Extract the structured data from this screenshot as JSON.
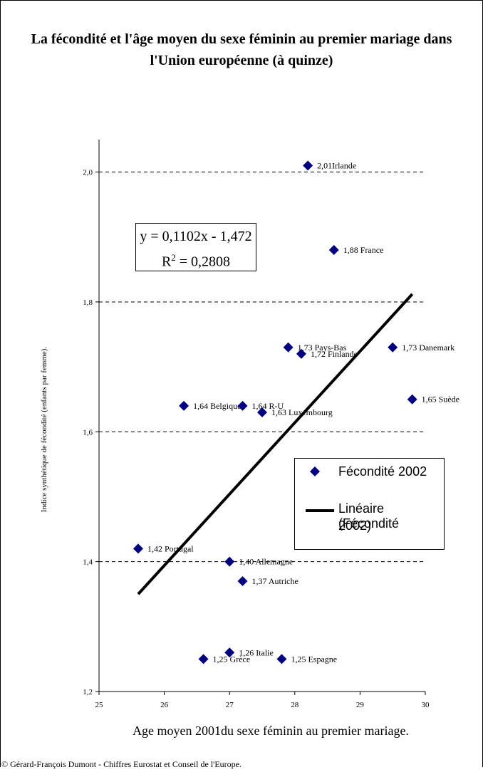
{
  "chart_data": {
    "type": "scatter",
    "title": "La fécondité et l'âge moyen du sexe féminin au premier mariage dans l'Union européenne (à quinze)",
    "xlabel": "Age moyen 2001du sexe féminin au premier mariage.",
    "ylabel": "Indice synthétique de fécondité (enfants par femme).",
    "xlim": [
      25,
      30
    ],
    "ylim": [
      1.2,
      2.05
    ],
    "x_ticks": [
      "25",
      "26",
      "27",
      "28",
      "29",
      "30"
    ],
    "y_ticks": [
      "1,2",
      "1,4",
      "1,6",
      "1,8",
      "2,0"
    ],
    "grid": "horizontal dashed",
    "legend_position": "bottom-right",
    "series": [
      {
        "name": "Fécondité 2002",
        "color": "#00007f",
        "marker": "diamond",
        "points": [
          {
            "x": 28.2,
            "y": 2.01,
            "label": "2,01Irlande"
          },
          {
            "x": 28.6,
            "y": 1.88,
            "label": "1,88 France"
          },
          {
            "x": 27.9,
            "y": 1.73,
            "label": "1,73 Pays-Bas"
          },
          {
            "x": 28.1,
            "y": 1.72,
            "label": "1,72 Finlande"
          },
          {
            "x": 29.5,
            "y": 1.73,
            "label": "1,73 Danemark"
          },
          {
            "x": 29.8,
            "y": 1.65,
            "label": "1,65 Suède"
          },
          {
            "x": 26.3,
            "y": 1.64,
            "label": "1,64 Belgique"
          },
          {
            "x": 27.2,
            "y": 1.64,
            "label": "1,64 R-U"
          },
          {
            "x": 27.5,
            "y": 1.63,
            "label": "1,63 Luxembourg"
          },
          {
            "x": 25.6,
            "y": 1.42,
            "label": "1,42 Portugal"
          },
          {
            "x": 27.0,
            "y": 1.4,
            "label": "1,40 Allemagne"
          },
          {
            "x": 27.2,
            "y": 1.37,
            "label": "1,37 Autriche"
          },
          {
            "x": 27.0,
            "y": 1.26,
            "label": "1,26 Italie"
          },
          {
            "x": 26.6,
            "y": 1.25,
            "label": "1,25 Grèce"
          },
          {
            "x": 27.8,
            "y": 1.25,
            "label": "1,25 Espagne"
          }
        ]
      },
      {
        "name": "Linéaire (Fécondité 2002)",
        "color": "#000000",
        "type": "line",
        "x": [
          25.6,
          29.8
        ],
        "y": [
          1.35,
          1.812
        ]
      }
    ],
    "trendline": {
      "equation": "y = 0,1102x - 1,472",
      "r2_prefix": "R",
      "r2_exp": "2",
      "r2_value": " = 0,2808"
    }
  },
  "legend": {
    "items": [
      {
        "label": "Fécondité 2002"
      },
      {
        "label_line1": "Linéaire (Fécondité",
        "label_line2": "2002)"
      }
    ]
  },
  "footer": "© Gérard-François Dumont - Chiffres Eurostat et Conseil de l'Europe."
}
